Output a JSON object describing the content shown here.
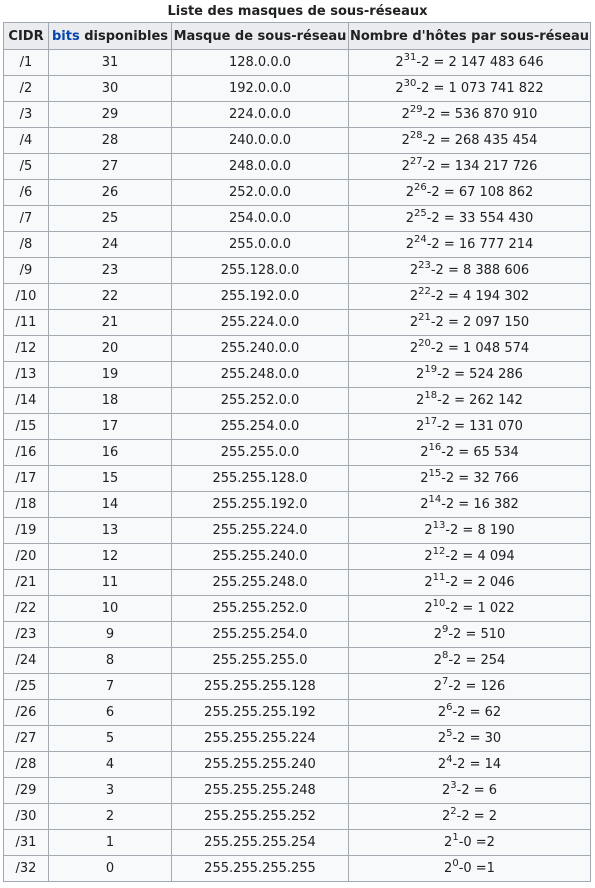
{
  "caption": "Liste des masques de sous-réseaux",
  "headers": {
    "cidr": "CIDR",
    "bits_link": "bits",
    "bits_rest": " disponibles",
    "mask": "Masque de sous-réseau",
    "hosts": "Nombre d'hôtes par sous-réseau"
  },
  "colors": {
    "link": "#0645ad",
    "header_bg": "#eaecf0",
    "cell_bg": "#f8f9fa",
    "border": "#a2a9b1"
  },
  "rows": [
    {
      "cidr": "/1",
      "bits": "31",
      "mask": "128.0.0.0",
      "base": "2",
      "exp": "31",
      "rest": "-2 = 2 147 483 646"
    },
    {
      "cidr": "/2",
      "bits": "30",
      "mask": "192.0.0.0",
      "base": "2",
      "exp": "30",
      "rest": "-2 = 1 073 741 822"
    },
    {
      "cidr": "/3",
      "bits": "29",
      "mask": "224.0.0.0",
      "base": "2",
      "exp": "29",
      "rest": "-2 = 536 870 910"
    },
    {
      "cidr": "/4",
      "bits": "28",
      "mask": "240.0.0.0",
      "base": "2",
      "exp": "28",
      "rest": "-2 = 268 435 454"
    },
    {
      "cidr": "/5",
      "bits": "27",
      "mask": "248.0.0.0",
      "base": "2",
      "exp": "27",
      "rest": "-2 = 134 217 726"
    },
    {
      "cidr": "/6",
      "bits": "26",
      "mask": "252.0.0.0",
      "base": "2",
      "exp": "26",
      "rest": "-2 = 67 108 862"
    },
    {
      "cidr": "/7",
      "bits": "25",
      "mask": "254.0.0.0",
      "base": "2",
      "exp": "25",
      "rest": "-2 = 33 554 430"
    },
    {
      "cidr": "/8",
      "bits": "24",
      "mask": "255.0.0.0",
      "base": "2",
      "exp": "24",
      "rest": "-2 = 16 777 214"
    },
    {
      "cidr": "/9",
      "bits": "23",
      "mask": "255.128.0.0",
      "base": "2",
      "exp": "23",
      "rest": "-2 = 8 388 606"
    },
    {
      "cidr": "/10",
      "bits": "22",
      "mask": "255.192.0.0",
      "base": "2",
      "exp": "22",
      "rest": "-2 = 4 194 302"
    },
    {
      "cidr": "/11",
      "bits": "21",
      "mask": "255.224.0.0",
      "base": "2",
      "exp": "21",
      "rest": "-2 = 2 097 150"
    },
    {
      "cidr": "/12",
      "bits": "20",
      "mask": "255.240.0.0",
      "base": "2",
      "exp": "20",
      "rest": "-2 = 1 048 574"
    },
    {
      "cidr": "/13",
      "bits": "19",
      "mask": "255.248.0.0",
      "base": "2",
      "exp": "19",
      "rest": "-2 = 524 286"
    },
    {
      "cidr": "/14",
      "bits": "18",
      "mask": "255.252.0.0",
      "base": "2",
      "exp": "18",
      "rest": "-2 = 262 142"
    },
    {
      "cidr": "/15",
      "bits": "17",
      "mask": "255.254.0.0",
      "base": "2",
      "exp": "17",
      "rest": "-2 = 131 070"
    },
    {
      "cidr": "/16",
      "bits": "16",
      "mask": "255.255.0.0",
      "base": "2",
      "exp": "16",
      "rest": "-2 = 65 534"
    },
    {
      "cidr": "/17",
      "bits": "15",
      "mask": "255.255.128.0",
      "base": "2",
      "exp": "15",
      "rest": "-2 = 32 766"
    },
    {
      "cidr": "/18",
      "bits": "14",
      "mask": "255.255.192.0",
      "base": "2",
      "exp": "14",
      "rest": "-2 = 16 382"
    },
    {
      "cidr": "/19",
      "bits": "13",
      "mask": "255.255.224.0",
      "base": "2",
      "exp": "13",
      "rest": "-2 = 8 190"
    },
    {
      "cidr": "/20",
      "bits": "12",
      "mask": "255.255.240.0",
      "base": "2",
      "exp": "12",
      "rest": "-2 = 4 094"
    },
    {
      "cidr": "/21",
      "bits": "11",
      "mask": "255.255.248.0",
      "base": "2",
      "exp": "11",
      "rest": "-2 = 2 046"
    },
    {
      "cidr": "/22",
      "bits": "10",
      "mask": "255.255.252.0",
      "base": "2",
      "exp": "10",
      "rest": "-2 = 1 022"
    },
    {
      "cidr": "/23",
      "bits": "9",
      "mask": "255.255.254.0",
      "base": "2",
      "exp": "9",
      "rest": "-2 = 510"
    },
    {
      "cidr": "/24",
      "bits": "8",
      "mask": "255.255.255.0",
      "base": "2",
      "exp": "8",
      "rest": "-2 = 254"
    },
    {
      "cidr": "/25",
      "bits": "7",
      "mask": "255.255.255.128",
      "base": "2",
      "exp": "7",
      "rest": "-2 = 126"
    },
    {
      "cidr": "/26",
      "bits": "6",
      "mask": "255.255.255.192",
      "base": "2",
      "exp": "6",
      "rest": "-2 = 62"
    },
    {
      "cidr": "/27",
      "bits": "5",
      "mask": "255.255.255.224",
      "base": "2",
      "exp": "5",
      "rest": "-2 = 30"
    },
    {
      "cidr": "/28",
      "bits": "4",
      "mask": "255.255.255.240",
      "base": "2",
      "exp": "4",
      "rest": "-2 = 14"
    },
    {
      "cidr": "/29",
      "bits": "3",
      "mask": "255.255.255.248",
      "base": "2",
      "exp": "3",
      "rest": "-2 = 6"
    },
    {
      "cidr": "/30",
      "bits": "2",
      "mask": "255.255.255.252",
      "base": "2",
      "exp": "2",
      "rest": "-2 = 2"
    },
    {
      "cidr": "/31",
      "bits": "1",
      "mask": "255.255.255.254",
      "base": "2",
      "exp": "1",
      "rest": "-0 =2"
    },
    {
      "cidr": "/32",
      "bits": "0",
      "mask": "255.255.255.255",
      "base": "2",
      "exp": "0",
      "rest": "-0 =1"
    }
  ]
}
